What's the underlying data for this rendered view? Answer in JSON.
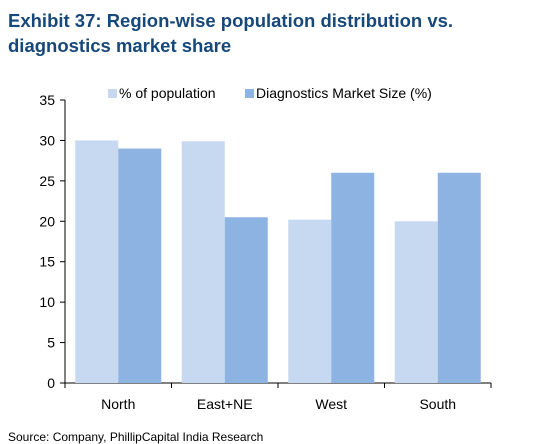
{
  "title": "Exhibit 37:  Region-wise population distribution vs. diagnostics market share",
  "source": "Source: Company, PhillipCapital India Research",
  "colors": {
    "series1": "#c6d9f1",
    "series2": "#8db3e2",
    "title": "#17487a"
  },
  "chart_data": {
    "type": "bar",
    "title": "Exhibit 37:  Region-wise population distribution vs. diagnostics market share",
    "categories": [
      "North",
      "East+NE",
      "West",
      "South"
    ],
    "series": [
      {
        "name": "% of population",
        "values": [
          30,
          29.9,
          20.2,
          20
        ]
      },
      {
        "name": "Diagnostics Market Size (%)",
        "values": [
          29,
          20.5,
          26,
          26
        ]
      }
    ],
    "xlabel": "",
    "ylabel": "",
    "ylim": [
      0,
      35
    ],
    "yticks": [
      0,
      5,
      10,
      15,
      20,
      25,
      30,
      35
    ],
    "legend": "top",
    "grid": false
  }
}
